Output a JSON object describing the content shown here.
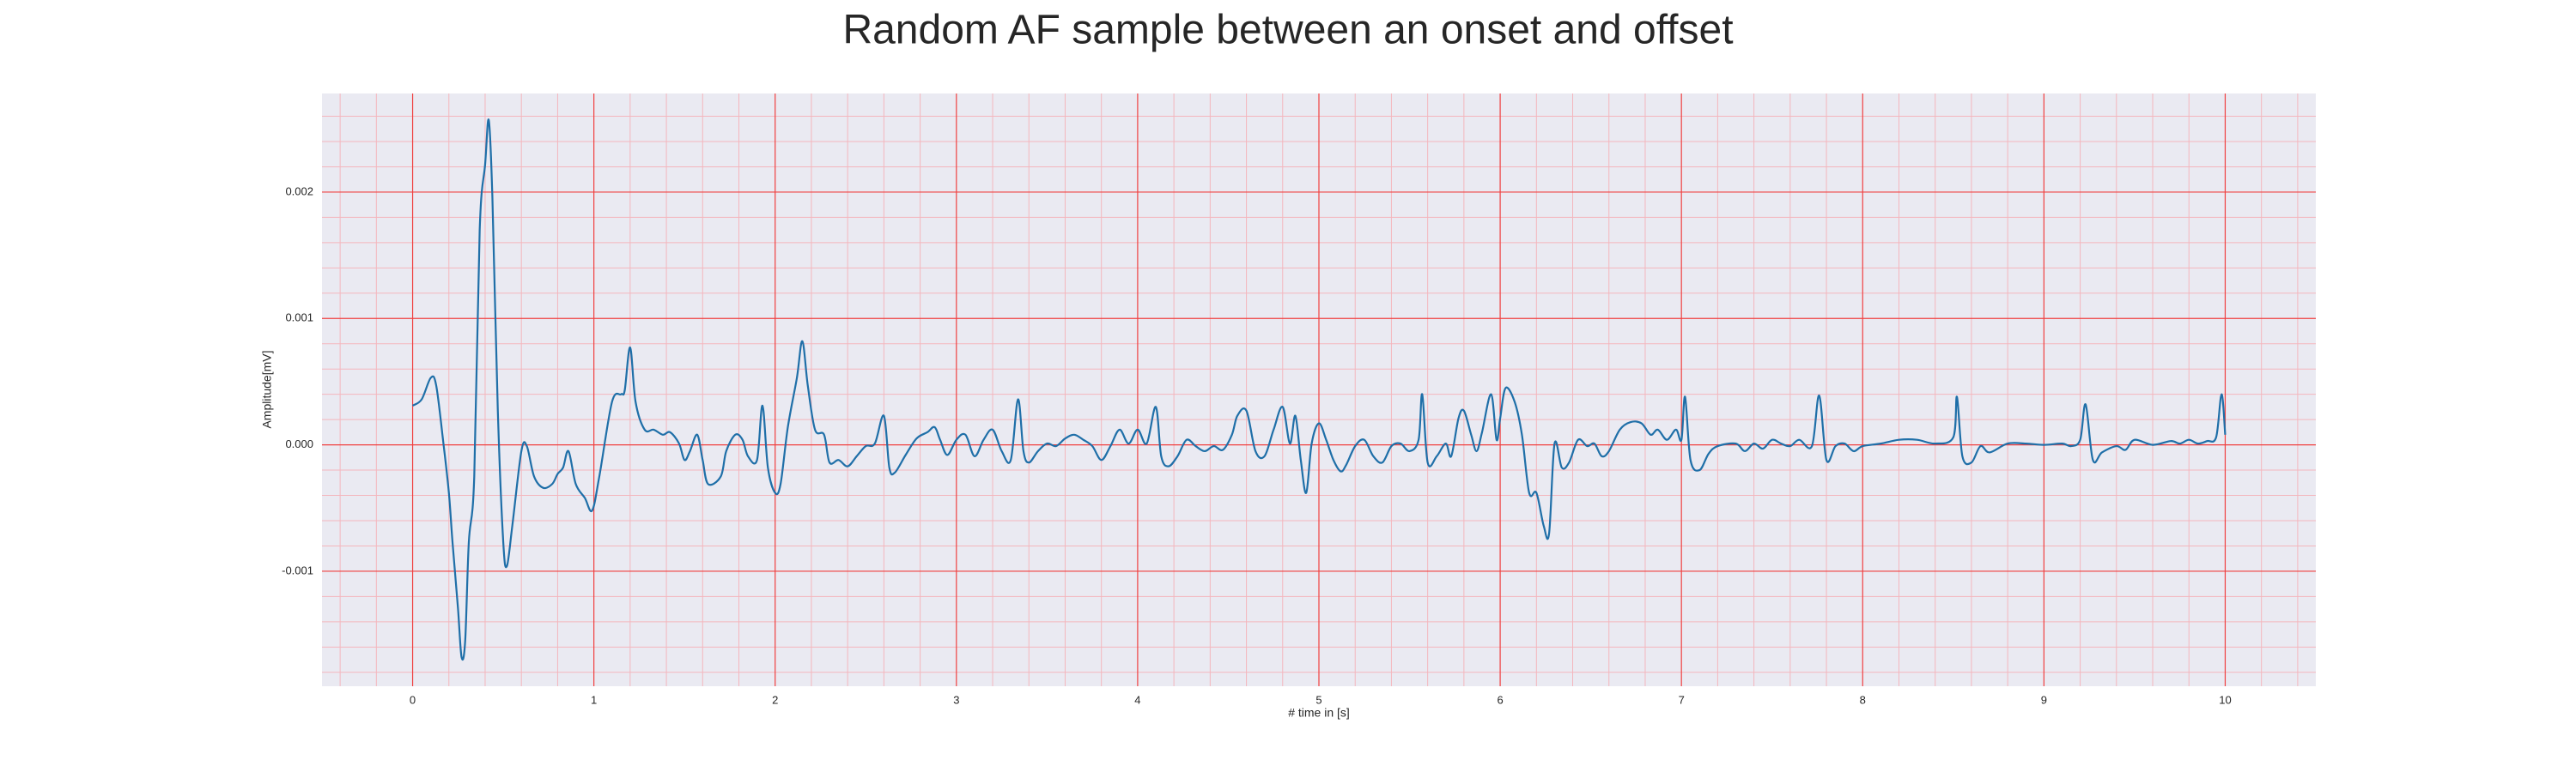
{
  "chart_data": {
    "type": "line",
    "title": "Random AF sample between an onset and offset",
    "xlabel": "# time in [s]",
    "ylabel": "Amplitude[mV]",
    "xlim": [
      -0.5,
      10.5
    ],
    "ylim": [
      -0.00191,
      0.00278
    ],
    "xticks": [
      0,
      1,
      2,
      3,
      4,
      5,
      6,
      7,
      8,
      9,
      10
    ],
    "yticks": [
      -0.001,
      {
        "value": 0,
        "label": "0.000"
      },
      0.001,
      0.002
    ],
    "grid": true,
    "minor_divisions": 5,
    "background": "#eaeaf2",
    "grid_color": "#f04040",
    "minor_grid_color": "#f4b6bd",
    "color": "#1f6fa8",
    "x": [
      0,
      0.05,
      0.1,
      0.13,
      0.17,
      0.2,
      0.22,
      0.25,
      0.27,
      0.29,
      0.31,
      0.34,
      0.37,
      0.4,
      0.42,
      0.44,
      0.47,
      0.5,
      0.52,
      0.55,
      0.6,
      0.63,
      0.67,
      0.72,
      0.77,
      0.8,
      0.83,
      0.86,
      0.9,
      0.95,
      0.99,
      1.03,
      1.1,
      1.15,
      1.17,
      1.2,
      1.23,
      1.28,
      1.33,
      1.38,
      1.42,
      1.47,
      1.5,
      1.53,
      1.57,
      1.6,
      1.63,
      1.7,
      1.73,
      1.78,
      1.82,
      1.85,
      1.9,
      1.93,
      1.96,
      2.0,
      2.03,
      2.07,
      2.12,
      2.15,
      2.18,
      2.22,
      2.27,
      2.3,
      2.35,
      2.4,
      2.45,
      2.5,
      2.55,
      2.6,
      2.63,
      2.66,
      2.72,
      2.78,
      2.84,
      2.88,
      2.91,
      2.95,
      3.0,
      3.05,
      3.1,
      3.15,
      3.2,
      3.25,
      3.3,
      3.34,
      3.37,
      3.4,
      3.45,
      3.5,
      3.55,
      3.6,
      3.65,
      3.7,
      3.75,
      3.8,
      3.85,
      3.9,
      3.95,
      4.0,
      4.05,
      4.1,
      4.13,
      4.17,
      4.22,
      4.27,
      4.32,
      4.37,
      4.42,
      4.47,
      4.52,
      4.55,
      4.6,
      4.65,
      4.7,
      4.75,
      4.8,
      4.84,
      4.87,
      4.9,
      4.93,
      4.96,
      5.0,
      5.04,
      5.08,
      5.12,
      5.15,
      5.2,
      5.25,
      5.3,
      5.35,
      5.4,
      5.45,
      5.5,
      5.55,
      5.57,
      5.6,
      5.65,
      5.7,
      5.73,
      5.77,
      5.8,
      5.84,
      5.87,
      5.9,
      5.95,
      5.98,
      6.0,
      6.03,
      6.08,
      6.12,
      6.16,
      6.2,
      6.24,
      6.27,
      6.3,
      6.34,
      6.38,
      6.43,
      6.48,
      6.52,
      6.56,
      6.6,
      6.66,
      6.72,
      6.78,
      6.83,
      6.87,
      6.92,
      6.97,
      7.0,
      7.02,
      7.05,
      7.1,
      7.15,
      7.2,
      7.3,
      7.35,
      7.4,
      7.45,
      7.5,
      7.55,
      7.6,
      7.65,
      7.72,
      7.76,
      7.8,
      7.85,
      7.9,
      7.95,
      8.0,
      8.1,
      8.2,
      8.3,
      8.4,
      8.5,
      8.52,
      8.55,
      8.6,
      8.65,
      8.7,
      8.8,
      8.9,
      9.0,
      9.1,
      9.15,
      9.2,
      9.23,
      9.27,
      9.32,
      9.4,
      9.45,
      9.5,
      9.6,
      9.7,
      9.75,
      9.8,
      9.85,
      9.9,
      9.95,
      9.98,
      10.0
    ],
    "values": [
      0.00031,
      0.00036,
      0.00053,
      0.00047,
      1e-05,
      -0.00038,
      -0.00077,
      -0.00129,
      -0.00168,
      -0.00155,
      -0.00077,
      -0.00025,
      0.0017,
      0.00222,
      0.00257,
      0.00196,
      0.00027,
      -0.00077,
      -0.00096,
      -0.00064,
      -5e-05,
      -1e-05,
      -0.00025,
      -0.00034,
      -0.00031,
      -0.00023,
      -0.00018,
      -5e-05,
      -0.00031,
      -0.00042,
      -0.00052,
      -0.00025,
      0.00034,
      0.0004,
      0.00043,
      0.00077,
      0.00034,
      0.00012,
      0.00012,
      8e-05,
      0.0001,
      1e-05,
      -0.00012,
      -5e-05,
      8e-05,
      -0.00012,
      -0.00031,
      -0.00025,
      -5e-05,
      8e-05,
      4e-05,
      -9e-05,
      -0.00012,
      0.00031,
      -0.00018,
      -0.00038,
      -0.00031,
      0.00014,
      0.00053,
      0.00082,
      0.00047,
      0.00012,
      8e-05,
      -0.00014,
      -0.00012,
      -0.00017,
      -9e-05,
      -1e-05,
      1e-05,
      0.00023,
      -0.00018,
      -0.00022,
      -8e-05,
      5e-05,
      0.0001,
      0.00014,
      4e-05,
      -8e-05,
      4e-05,
      8e-05,
      -9e-05,
      4e-05,
      0.00012,
      -5e-05,
      -0.00012,
      0.00036,
      -5e-05,
      -0.00014,
      -5e-05,
      1e-05,
      -1e-05,
      5e-05,
      8e-05,
      4e-05,
      -1e-05,
      -0.00012,
      -1e-05,
      0.00012,
      1e-05,
      0.00012,
      1e-05,
      0.0003,
      -9e-05,
      -0.00017,
      -9e-05,
      4e-05,
      -1e-05,
      -5e-05,
      -1e-05,
      -4e-05,
      8e-05,
      0.00023,
      0.00027,
      -5e-05,
      -9e-05,
      0.00012,
      0.0003,
      1e-05,
      0.00023,
      -0.00012,
      -0.00038,
      1e-05,
      0.00017,
      4e-05,
      -0.00012,
      -0.00021,
      -0.00016,
      -1e-05,
      4e-05,
      -9e-05,
      -0.00014,
      -1e-05,
      1e-05,
      -5e-05,
      4e-05,
      0.0004,
      -0.00014,
      -9e-05,
      1e-05,
      -9e-05,
      0.00021,
      0.00027,
      8e-05,
      -5e-05,
      0.0001,
      0.0004,
      4e-05,
      0.00021,
      0.00045,
      0.00034,
      8e-05,
      -0.00038,
      -0.00038,
      -0.00064,
      -0.0007,
      1e-05,
      -0.00018,
      -0.00014,
      4e-05,
      -1e-05,
      1e-05,
      -9e-05,
      -5e-05,
      0.00012,
      0.00018,
      0.00017,
      8e-05,
      0.00012,
      4e-05,
      0.00012,
      4e-05,
      0.00038,
      -0.00012,
      -0.0002,
      -7e-05,
      -1e-05,
      1e-05,
      -5e-05,
      1e-05,
      -3e-05,
      4e-05,
      1e-05,
      -1e-05,
      4e-05,
      -1e-05,
      0.00039,
      -0.00012,
      -1e-05,
      1e-05,
      -5e-05,
      -1e-05,
      1e-05,
      4e-05,
      4e-05,
      1e-05,
      6e-05,
      0.00038,
      -9e-05,
      -0.00014,
      -1e-05,
      -6e-05,
      1e-05,
      1e-05,
      0,
      1e-05,
      -1e-05,
      4e-05,
      0.00032,
      -0.00012,
      -6e-05,
      -1e-05,
      -4e-05,
      4e-05,
      0,
      3e-05,
      1e-05,
      4e-05,
      1e-05,
      3e-05,
      6e-05,
      0.0004,
      8e-05
    ]
  }
}
